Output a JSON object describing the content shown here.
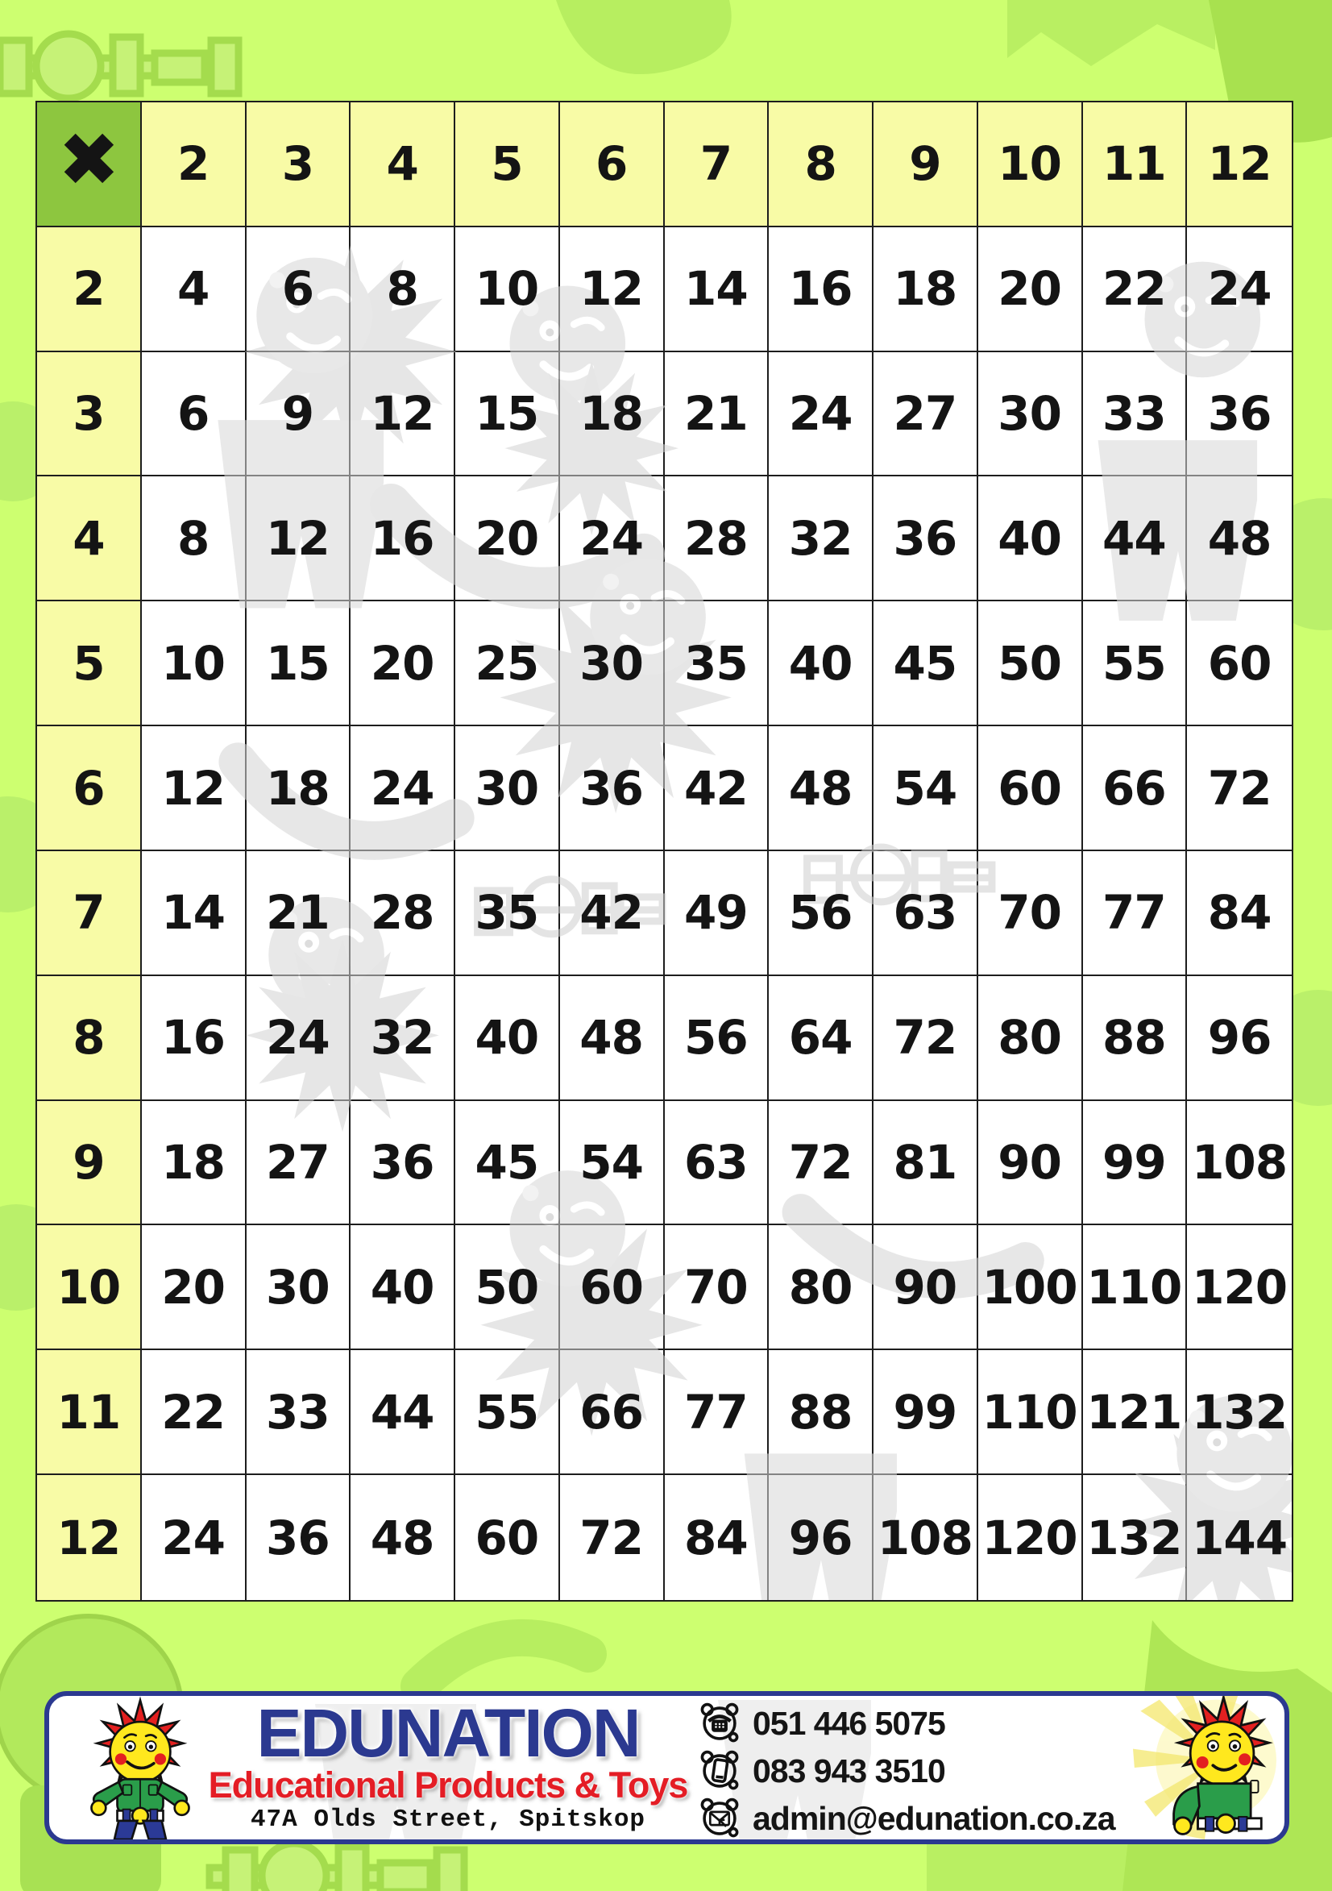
{
  "table": {
    "operator": "✖",
    "col_headers": [
      "2",
      "3",
      "4",
      "5",
      "6",
      "7",
      "8",
      "9",
      "10",
      "11",
      "12"
    ],
    "rows": [
      {
        "header": "2",
        "values": [
          "4",
          "6",
          "8",
          "10",
          "12",
          "14",
          "16",
          "18",
          "20",
          "22",
          "24"
        ]
      },
      {
        "header": "3",
        "values": [
          "6",
          "9",
          "12",
          "15",
          "18",
          "21",
          "24",
          "27",
          "30",
          "33",
          "36"
        ]
      },
      {
        "header": "4",
        "values": [
          "8",
          "12",
          "16",
          "20",
          "24",
          "28",
          "32",
          "36",
          "40",
          "44",
          "48"
        ]
      },
      {
        "header": "5",
        "values": [
          "10",
          "15",
          "20",
          "25",
          "30",
          "35",
          "40",
          "45",
          "50",
          "55",
          "60"
        ]
      },
      {
        "header": "6",
        "values": [
          "12",
          "18",
          "24",
          "30",
          "36",
          "42",
          "48",
          "54",
          "60",
          "66",
          "72"
        ]
      },
      {
        "header": "7",
        "values": [
          "14",
          "21",
          "28",
          "35",
          "42",
          "49",
          "56",
          "63",
          "70",
          "77",
          "84"
        ]
      },
      {
        "header": "8",
        "values": [
          "16",
          "24",
          "32",
          "40",
          "48",
          "56",
          "64",
          "72",
          "80",
          "88",
          "96"
        ]
      },
      {
        "header": "9",
        "values": [
          "18",
          "27",
          "36",
          "45",
          "54",
          "63",
          "72",
          "81",
          "90",
          "99",
          "108"
        ]
      },
      {
        "header": "10",
        "values": [
          "20",
          "30",
          "40",
          "50",
          "60",
          "70",
          "80",
          "90",
          "100",
          "110",
          "120"
        ]
      },
      {
        "header": "11",
        "values": [
          "22",
          "33",
          "44",
          "55",
          "66",
          "77",
          "88",
          "99",
          "110",
          "121",
          "132"
        ]
      },
      {
        "header": "12",
        "values": [
          "24",
          "36",
          "48",
          "60",
          "72",
          "84",
          "96",
          "108",
          "120",
          "132",
          "144"
        ]
      }
    ]
  },
  "footer": {
    "brand": "EDUNATION",
    "tagline": "Educational Products & Toys",
    "address": "47A Olds Street, Spitskop",
    "contacts": [
      {
        "icon": "phone-icon",
        "value": "051 446 5075"
      },
      {
        "icon": "mobile-icon",
        "value": "083 943 3510"
      },
      {
        "icon": "email-icon",
        "value": "admin@edunation.co.za"
      }
    ]
  },
  "colors": {
    "page_background": "#cdff70",
    "header_cell": "#f8fba6",
    "corner_cell": "#8dc63f",
    "value_cell": "#ffffff",
    "grid_line": "#1d1d1d",
    "banner_border": "#2b3990",
    "brand_blue": "#2b3990",
    "brand_red": "#e41d25",
    "number_text": "#141414"
  }
}
